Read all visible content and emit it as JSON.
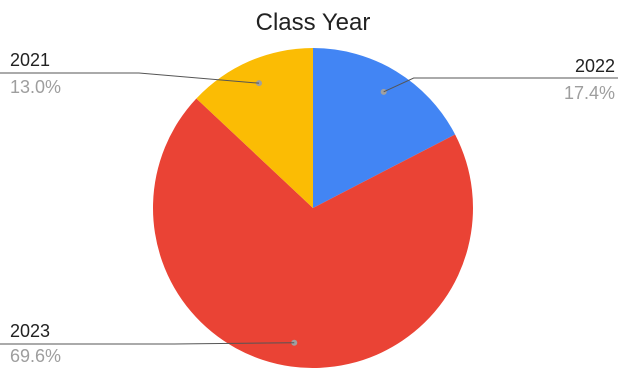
{
  "chart_data": {
    "type": "pie",
    "title": "Class Year",
    "slices": [
      {
        "label": "2022",
        "value": 17.4,
        "display": "17.4%",
        "color": "#4285F4"
      },
      {
        "label": "2023",
        "value": 69.6,
        "display": "69.6%",
        "color": "#EA4335"
      },
      {
        "label": "2021",
        "value": 13.0,
        "display": "13.0%",
        "color": "#FBBC04"
      }
    ],
    "start_angle_deg": 0,
    "direction": "clockwise",
    "legend": "none",
    "labels_placement": "outside-with-leader-lines"
  }
}
